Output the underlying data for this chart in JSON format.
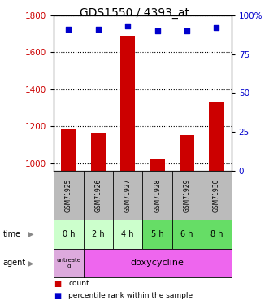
{
  "title": "GDS1550 / 4393_at",
  "samples": [
    "GSM71925",
    "GSM71926",
    "GSM71927",
    "GSM71928",
    "GSM71929",
    "GSM71930"
  ],
  "bar_values": [
    1185,
    1165,
    1690,
    1020,
    1155,
    1330
  ],
  "percentile_values": [
    91,
    91,
    93,
    90,
    90,
    92
  ],
  "ylim_left": [
    960,
    1800
  ],
  "ylim_right": [
    0,
    100
  ],
  "yticks_left": [
    1000,
    1200,
    1400,
    1600,
    1800
  ],
  "yticks_right": [
    0,
    25,
    50,
    75,
    100
  ],
  "bar_color": "#cc0000",
  "dot_color": "#0000cc",
  "time_labels": [
    "0 h",
    "2 h",
    "4 h",
    "5 h",
    "6 h",
    "8 h"
  ],
  "time_colors": [
    "#ccffcc",
    "#ccffcc",
    "#ccffcc",
    "#66dd66",
    "#66dd66",
    "#66dd66"
  ],
  "agent_label_first": "untreate\nd",
  "agent_label_rest": "doxycycline",
  "agent_bg_first": "#ddaadd",
  "agent_bg_rest": "#ee66ee",
  "sample_bg": "#bbbbbb",
  "title_fontsize": 10,
  "axis_color_left": "#cc0000",
  "axis_color_right": "#0000cc",
  "bar_width": 0.5
}
